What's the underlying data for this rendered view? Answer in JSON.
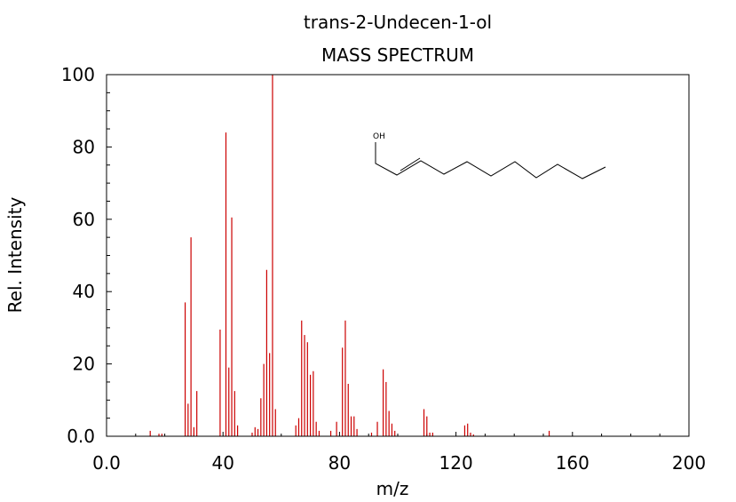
{
  "chart_data": {
    "type": "bar",
    "title": "trans-2-Undecen-1-ol",
    "subtitle": "MASS SPECTRUM",
    "xlabel": "m/z",
    "ylabel": "Rel. Intensity",
    "xlim": [
      0,
      200
    ],
    "ylim": [
      0,
      100
    ],
    "x_ticks": [
      "0.0",
      "40",
      "80",
      "120",
      "160",
      "200"
    ],
    "y_ticks": [
      "0.0",
      "20",
      "40",
      "60",
      "80",
      "100"
    ],
    "grid": false,
    "bar_color": "#cc0000",
    "structure_label": "OH",
    "series": [
      {
        "x": [
          15,
          18,
          19,
          27,
          28,
          29,
          30,
          31,
          39,
          41,
          42,
          43,
          44,
          45,
          50,
          51,
          52,
          53,
          54,
          55,
          56,
          57,
          58,
          65,
          66,
          67,
          68,
          69,
          70,
          71,
          72,
          73,
          77,
          79,
          81,
          82,
          83,
          84,
          85,
          86,
          91,
          93,
          95,
          96,
          97,
          98,
          99,
          109,
          110,
          111,
          112,
          123,
          124,
          125,
          126,
          152
        ],
        "values": [
          1.5,
          0.7,
          0.7,
          37,
          9,
          55,
          2.5,
          12.5,
          29.5,
          84,
          19,
          60.5,
          12.5,
          3,
          1,
          2.5,
          2,
          10.5,
          20,
          46,
          23,
          100,
          7.5,
          3,
          5,
          32,
          28,
          26,
          17,
          18,
          4,
          1.5,
          1.5,
          4,
          24.5,
          32,
          14.5,
          5.5,
          5.5,
          2,
          1,
          4,
          18.5,
          15,
          7,
          3.5,
          1.5,
          7.5,
          5.5,
          1,
          1,
          3,
          3.5,
          1,
          0.5,
          1.5
        ]
      }
    ]
  }
}
